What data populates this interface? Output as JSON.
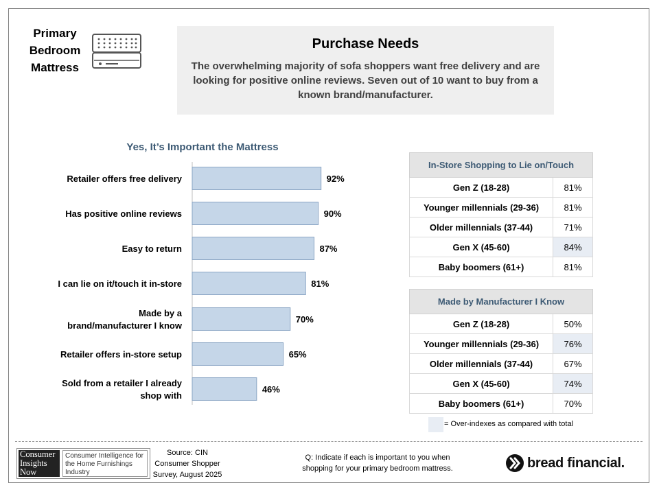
{
  "topic_label": "Primary Bedroom Mattress",
  "header": {
    "title": "Purchase Needs",
    "description": "The overwhelming majority of sofa shoppers want free delivery and are looking for positive online reviews. Seven out of 10 want to buy from a known brand/manufacturer."
  },
  "chart_data": {
    "type": "bar",
    "orientation": "horizontal",
    "title": "Yes, It’s Important the Mattress",
    "categories": [
      "Retailer offers free delivery",
      "Has positive online reviews",
      "Easy to return",
      "I can lie on it/touch it in-store",
      "Made by a brand/manufacturer I know",
      "Retailer offers in-store setup",
      "Sold from a retailer I already shop with"
    ],
    "category_lines": [
      [
        "Retailer offers free delivery"
      ],
      [
        "Has positive online reviews"
      ],
      [
        "Easy to return"
      ],
      [
        "I can lie on it/touch it in-store"
      ],
      [
        "Made by a",
        "brand/manufacturer I know"
      ],
      [
        "Retailer offers in-store setup"
      ],
      [
        "Sold from a retailer I already",
        "shop with"
      ]
    ],
    "values": [
      92,
      90,
      87,
      81,
      70,
      65,
      46
    ],
    "value_labels": [
      "92%",
      "90%",
      "87%",
      "81%",
      "70%",
      "65%",
      "46%"
    ],
    "xlim": [
      0,
      100
    ],
    "grid": false,
    "bar_color": "#c5d6e8"
  },
  "tables": [
    {
      "title": "In-Store Shopping to Lie on/Touch",
      "rows": [
        {
          "segment": "Gen Z (18-28)",
          "value": "81%",
          "over_index": false
        },
        {
          "segment": "Younger millennials (29-36)",
          "value": "81%",
          "over_index": false
        },
        {
          "segment": "Older millennials (37-44)",
          "value": "71%",
          "over_index": false
        },
        {
          "segment": "Gen X (45-60)",
          "value": "84%",
          "over_index": true
        },
        {
          "segment": "Baby boomers (61+)",
          "value": "81%",
          "over_index": false
        }
      ]
    },
    {
      "title": "Made by Manufacturer I Know",
      "rows": [
        {
          "segment": "Gen Z (18-28)",
          "value": "50%",
          "over_index": false
        },
        {
          "segment": "Younger millennials (29-36)",
          "value": "76%",
          "over_index": true
        },
        {
          "segment": "Older millennials (37-44)",
          "value": "67%",
          "over_index": false
        },
        {
          "segment": "Gen X (45-60)",
          "value": "74%",
          "over_index": true
        },
        {
          "segment": "Baby boomers (61+)",
          "value": "70%",
          "over_index": false
        }
      ]
    }
  ],
  "legend_text": "= Over-indexes as compared with total",
  "footer": {
    "logo_left_lines": [
      "Consumer",
      "Insights",
      "Now"
    ],
    "logo_right_text": "Consumer Intelligence for the Home Furnishings Industry",
    "source_lines": [
      "Source: CIN",
      "Consumer Shopper",
      "Survey, August 2025"
    ],
    "question_lines": [
      "Q:  Indicate if each is important to you when",
      "shopping for your primary bedroom mattress."
    ],
    "brand_name": "bread financial."
  },
  "colors": {
    "accent_text": "#3d5a74",
    "over_index_fill": "#e8edf4",
    "header_bg": "#efefef"
  }
}
